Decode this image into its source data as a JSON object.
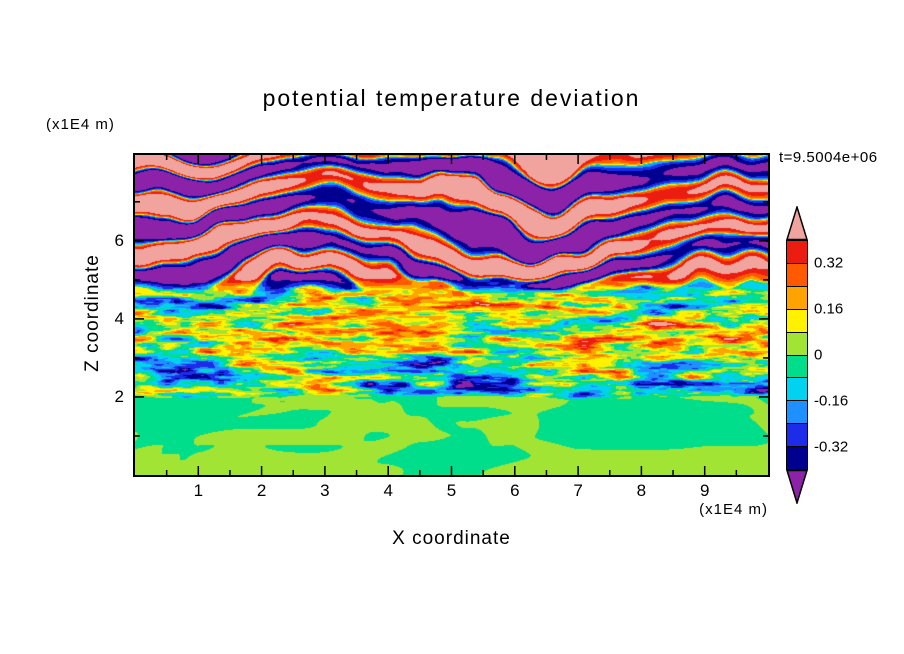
{
  "chart_data": {
    "type": "heatmap",
    "title": "potential temperature deviation",
    "xlabel": "X coordinate",
    "ylabel": "Z coordinate",
    "x_unit_label": "(x1E4 m)",
    "y_unit_label": "(x1E4 m)",
    "timestamp_label": "t=9.5004e+06",
    "xlim": [
      0,
      10
    ],
    "ylim": [
      0,
      8.2
    ],
    "x_ticks": [
      1,
      2,
      3,
      4,
      5,
      6,
      7,
      8,
      9
    ],
    "x_minor_tick_step": 0.5,
    "y_ticks": [
      2,
      4,
      6
    ],
    "y_minor_ticks": [
      1,
      3,
      5,
      7
    ],
    "grid": false,
    "frame_color": "#000000",
    "background_color": "#ffffff",
    "colorbar": {
      "position": "right",
      "levels": [
        -0.4,
        -0.32,
        -0.24,
        -0.16,
        -0.08,
        0,
        0.08,
        0.16,
        0.24,
        0.32,
        0.4
      ],
      "labeled_levels": [
        0.32,
        0.16,
        0,
        -0.16,
        -0.32
      ],
      "tick_labels": [
        "0.32",
        "0.16",
        "0",
        "-0.16",
        "-0.32"
      ],
      "band_colors_low_to_high": [
        "#000090",
        "#1C2CE8",
        "#1E90FF",
        "#00D2F0",
        "#00DE8C",
        "#A2E434",
        "#FFF200",
        "#FFA300",
        "#FF5A00",
        "#EB1D10"
      ],
      "below_min_color": "#8B22A8",
      "above_max_color": "#F1A39E"
    },
    "field": {
      "procedural": true,
      "description": "Vertical cross-section of potential temperature deviation from an atmospheric simulation at t=9.5004e+06 s. Three layers: (1) below z=2x1E4 m a smooth near-zero region showing only the two green bands (deviation between -0.08 and +0.08) in large swirls; (2) from z=2 to about z=4.7 a fine-scale turbulent mixing layer with horizontally stretched streaks spanning the full palette (navy/blue/cyan streaks and red/orange/yellow streaks on a green background); (3) above z=4.7 strong alternating quasi-horizontal gravity-wave bands saturating the scale (pink > 0.4 and purple < -0.4) separated by thin rainbow transition lines.",
      "regions": [
        {
          "z_range": [
            0,
            2
          ],
          "character": "smooth, |deviation| < 0.08, two green tones",
          "amplitude": 0.06
        },
        {
          "z_range": [
            2,
            4.7
          ],
          "character": "fine-scale turbulence, full palette streaks",
          "amplitude": 0.4
        },
        {
          "z_range": [
            4.7,
            8.2
          ],
          "character": "horizontal wave bands alternating beyond +/-0.4",
          "amplitude": 0.55
        }
      ]
    }
  }
}
